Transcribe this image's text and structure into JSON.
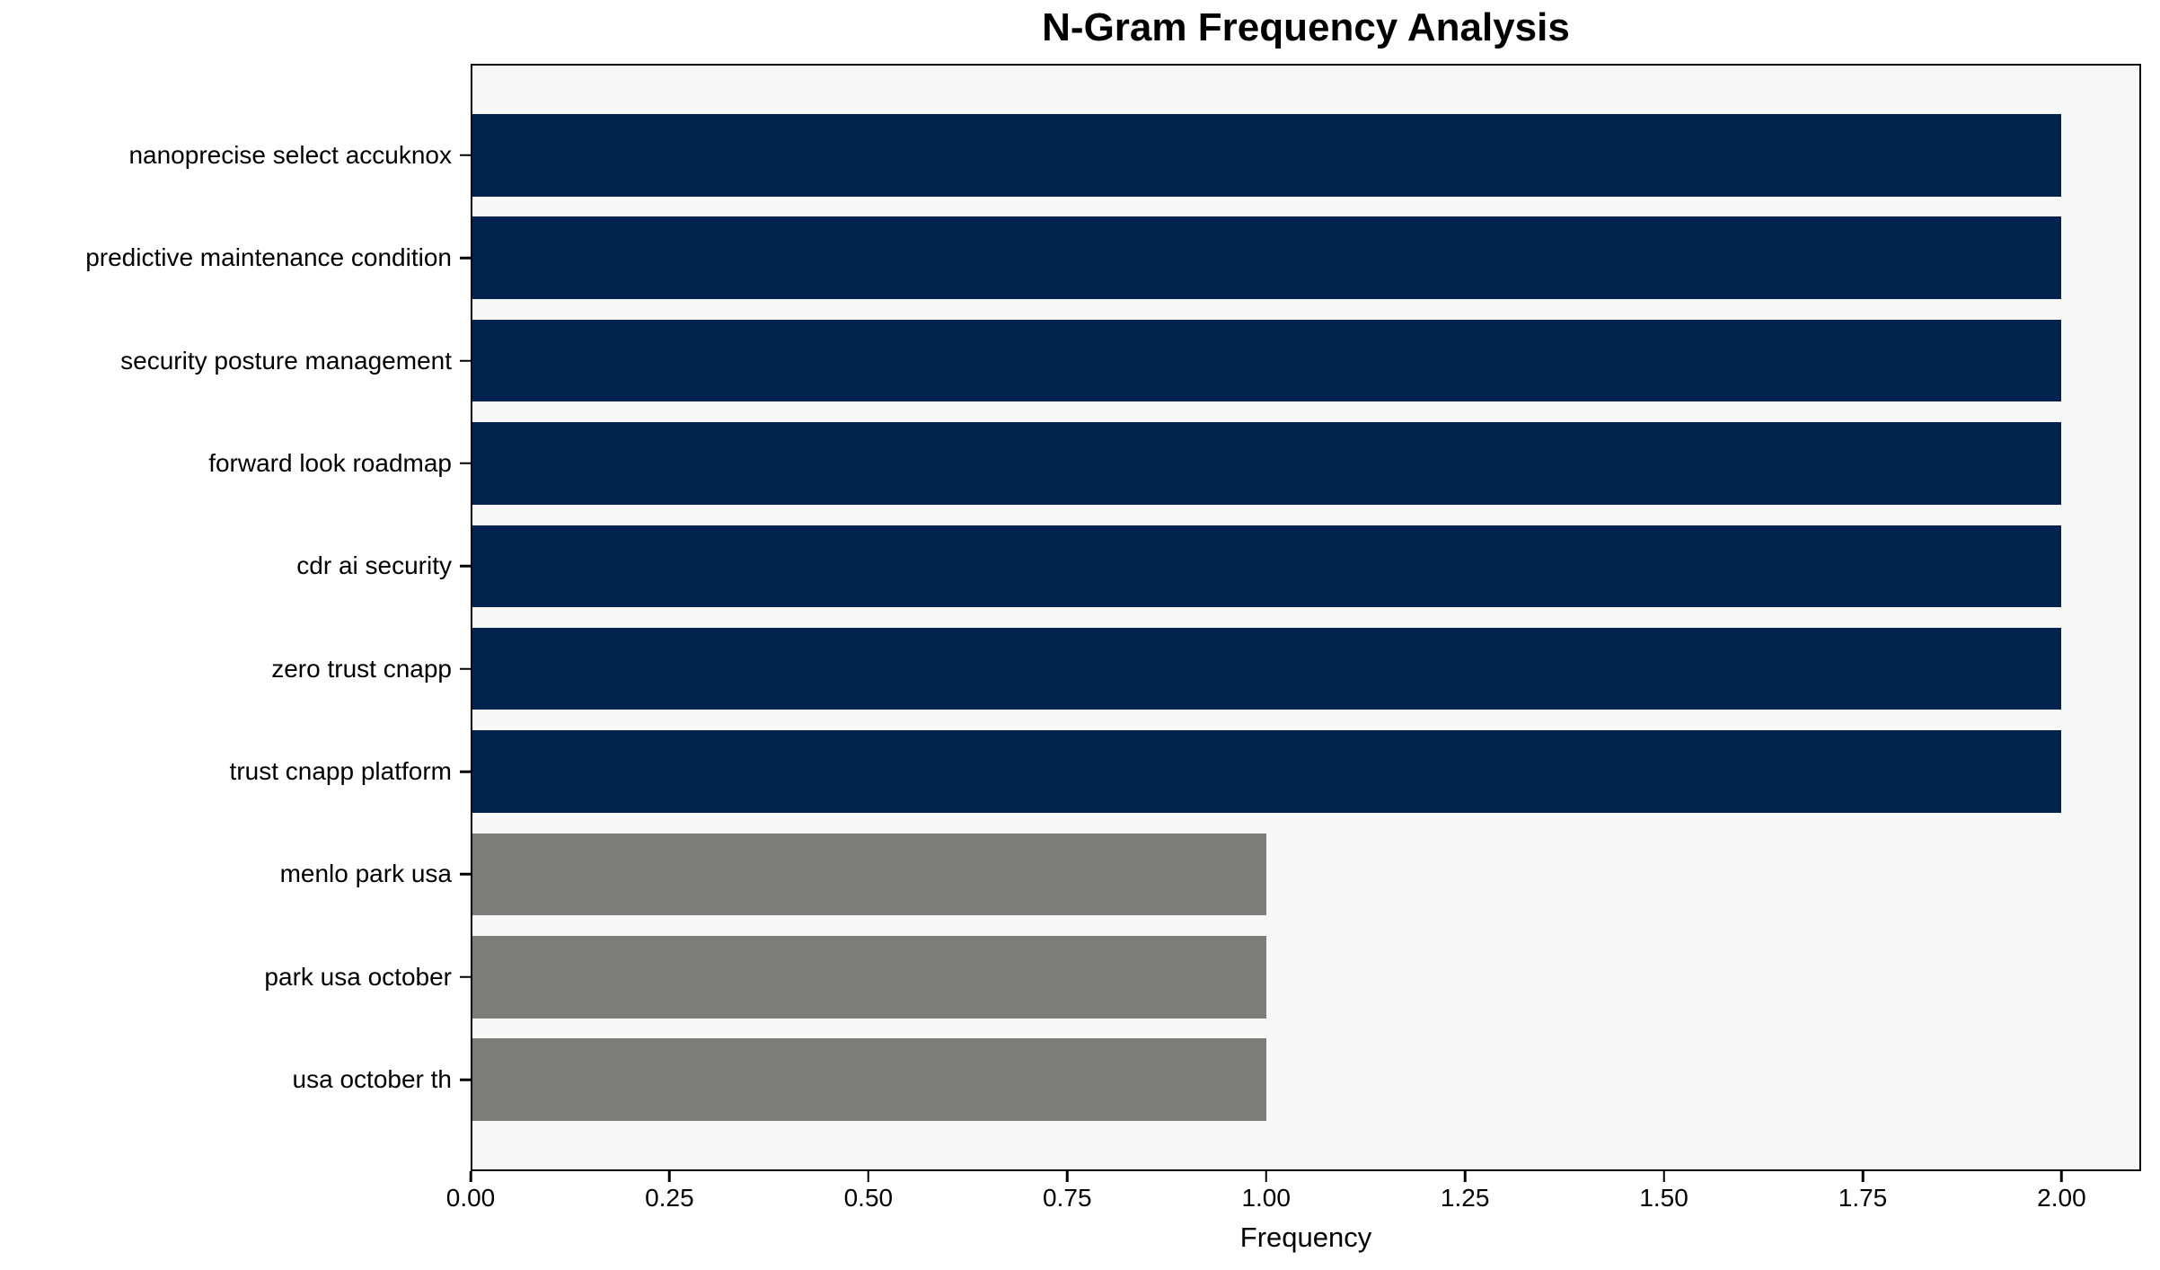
{
  "chart_data": {
    "type": "bar",
    "orientation": "horizontal",
    "title": "N-Gram Frequency Analysis",
    "xlabel": "Frequency",
    "ylabel": "",
    "categories": [
      "nanoprecise select accuknox",
      "predictive maintenance condition",
      "security posture management",
      "forward look roadmap",
      "cdr ai security",
      "zero trust cnapp",
      "trust cnapp platform",
      "menlo park usa",
      "park usa october",
      "usa october th"
    ],
    "values": [
      2,
      2,
      2,
      2,
      2,
      2,
      2,
      1,
      1,
      1
    ],
    "bar_colors": [
      "#02234D",
      "#02234D",
      "#02234D",
      "#02234D",
      "#02234D",
      "#02234D",
      "#02234D",
      "#7C7C79",
      "#7C7C79",
      "#7C7C79"
    ],
    "xlim": [
      0,
      2.1
    ],
    "xticks": [
      0,
      0.25,
      0.5,
      0.75,
      1.0,
      1.25,
      1.5,
      1.75,
      2.0
    ],
    "xtick_labels": [
      "0.00",
      "0.25",
      "0.50",
      "0.75",
      "1.00",
      "1.25",
      "1.50",
      "1.75",
      "2.00"
    ],
    "grid": false,
    "legend": "none",
    "plot_background": "#F7F7F7",
    "figure_background": "#FFFFFF",
    "bar_height_fraction": 0.8,
    "colors": {
      "high_frequency_bar": "#02234D",
      "low_frequency_bar": "#7C7C79",
      "axis": "#000000",
      "text": "#000000"
    }
  }
}
